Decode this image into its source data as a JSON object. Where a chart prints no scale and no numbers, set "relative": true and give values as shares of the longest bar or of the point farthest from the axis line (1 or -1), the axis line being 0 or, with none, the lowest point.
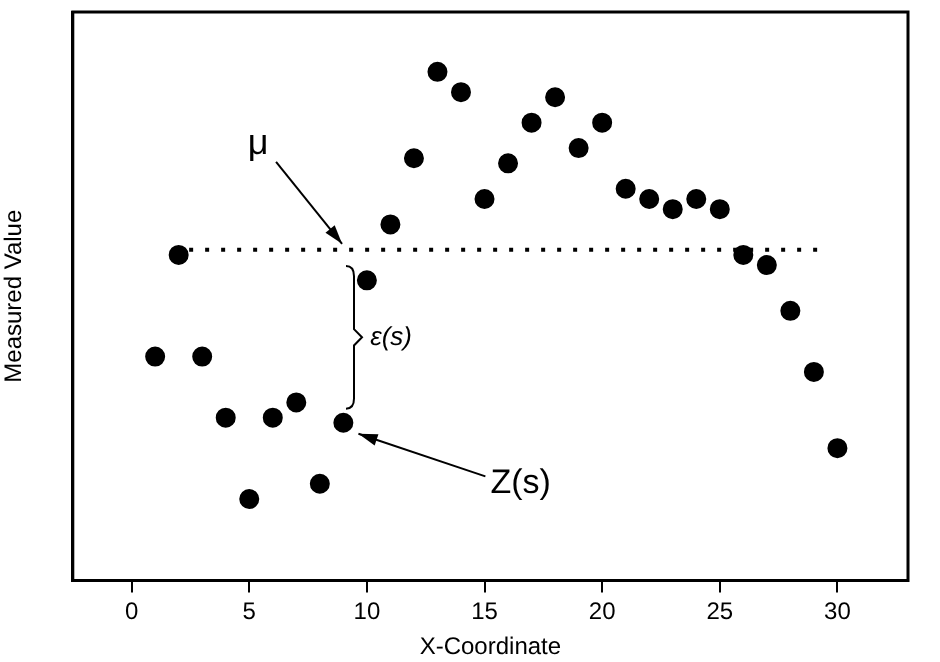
{
  "chart_data": {
    "type": "scatter",
    "xlabel": "X-Coordinate",
    "ylabel": "Measured Value",
    "relative": true,
    "x": [
      1,
      2,
      3,
      4,
      5,
      6,
      7,
      8,
      9,
      10,
      11,
      12,
      13,
      14,
      15,
      16,
      17,
      18,
      19,
      20,
      21,
      22,
      23,
      24,
      25,
      26,
      27,
      28,
      29,
      30
    ],
    "values": [
      0.44,
      0.64,
      0.44,
      0.32,
      0.16,
      0.32,
      0.35,
      0.19,
      0.31,
      0.59,
      0.7,
      0.83,
      1,
      0.96,
      0.75,
      0.82,
      0.9,
      0.95,
      0.85,
      0.9,
      0.77,
      0.75,
      0.73,
      0.75,
      0.73,
      0.64,
      0.62,
      0.53,
      0.41,
      0.26
    ],
    "color": "#000000",
    "marker": "circle",
    "legend": false,
    "xlim": [
      -2.5,
      33
    ],
    "xticks": [
      0,
      5,
      10,
      15,
      20,
      25,
      30
    ],
    "ref_lines": [
      {
        "axis": "y",
        "value": 0.65,
        "color": "#000000",
        "line_style": "dotted"
      }
    ],
    "annotations": [
      {
        "text": "μ",
        "x": 9.2,
        "y": 0.65
      },
      "ε(s)",
      "Z(s)"
    ]
  }
}
